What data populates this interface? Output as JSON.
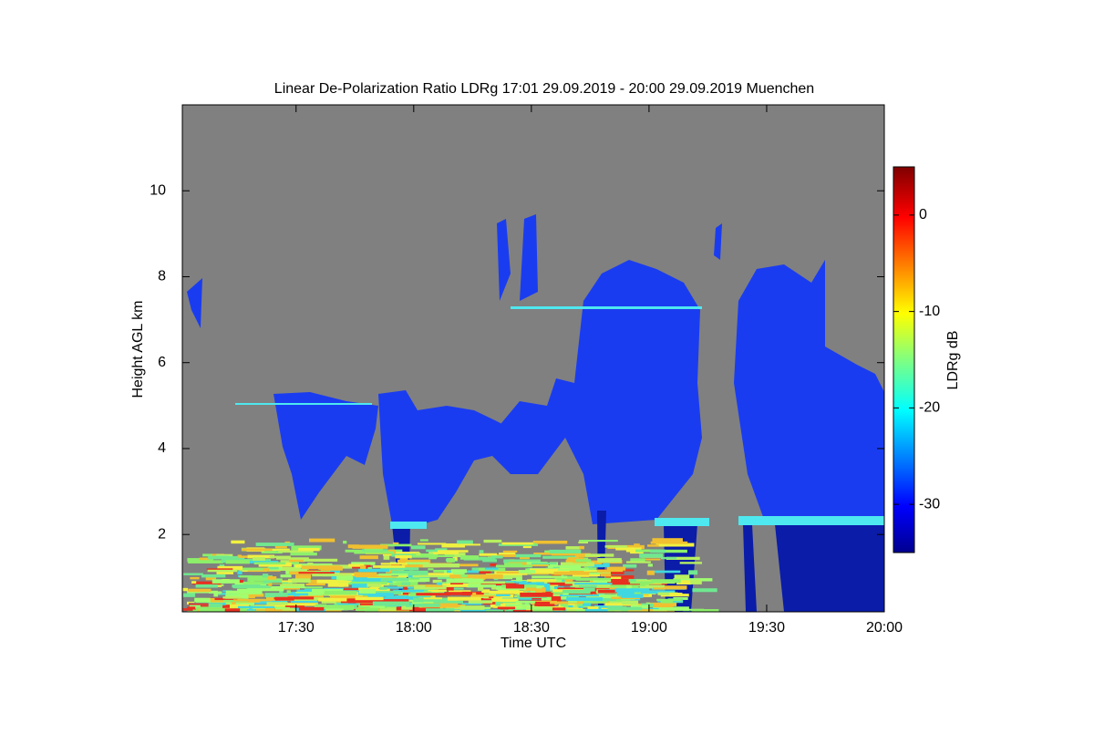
{
  "chart_data": {
    "type": "heatmap",
    "title": "Linear De-Polarization Ratio LDRg   17:01 29.09.2019 - 20:00 29.09.2019 Muenchen",
    "x_label": "Time UTC",
    "y_label": "Height AGL km",
    "colorbar_label": "LDRg dB",
    "xlim": [
      1021,
      1200
    ],
    "xticks": [
      {
        "value": 1050,
        "label": "17:30"
      },
      {
        "value": 1080,
        "label": "18:00"
      },
      {
        "value": 1110,
        "label": "18:30"
      },
      {
        "value": 1140,
        "label": "19:00"
      },
      {
        "value": 1170,
        "label": "19:30"
      },
      {
        "value": 1200,
        "label": "20:00"
      }
    ],
    "ylim": [
      0.2,
      12
    ],
    "yticks": [
      2,
      4,
      6,
      8,
      10
    ],
    "clim": [
      -35,
      5
    ],
    "cticks": [
      -30,
      -20,
      -10,
      0
    ]
  }
}
